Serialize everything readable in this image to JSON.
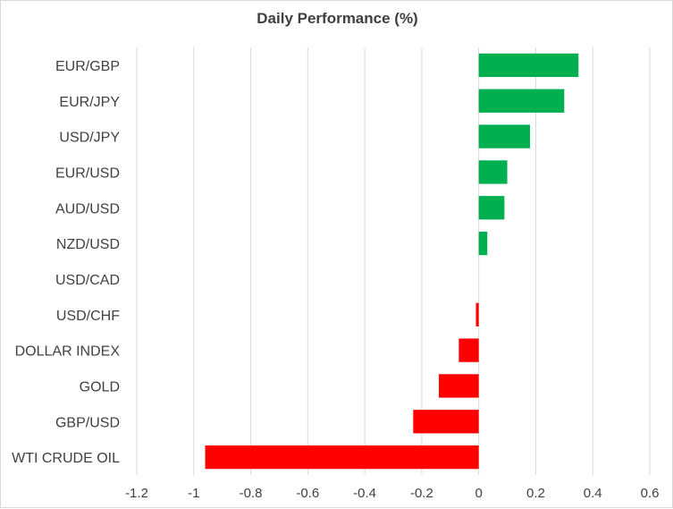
{
  "chart_data": {
    "type": "bar",
    "orientation": "horizontal",
    "title": "Daily Performance (%)",
    "categories": [
      "EUR/GBP",
      "EUR/JPY",
      "USD/JPY",
      "EUR/USD",
      "AUD/USD",
      "NZD/USD",
      "USD/CAD",
      "USD/CHF",
      "DOLLAR INDEX",
      "GOLD",
      "GBP/USD",
      "WTI CRUDE OIL"
    ],
    "values": [
      0.35,
      0.3,
      0.18,
      0.1,
      0.09,
      0.03,
      0.0,
      -0.01,
      -0.07,
      -0.14,
      -0.23,
      -0.96
    ],
    "xlim": [
      -1.2,
      0.6
    ],
    "x_ticks": [
      -1.2,
      -1,
      -0.8,
      -0.6,
      -0.4,
      -0.2,
      0,
      0.2,
      0.4,
      0.6
    ],
    "x_tick_labels": [
      "-1.2",
      "-1",
      "-0.8",
      "-0.6",
      "-0.4",
      "-0.2",
      "0",
      "0.2",
      "0.4",
      "0.6"
    ],
    "grid": "vertical",
    "legend": "none",
    "colors": {
      "positive": "#00b050",
      "negative": "#ff0000",
      "grid": "#d9d9d9"
    }
  }
}
